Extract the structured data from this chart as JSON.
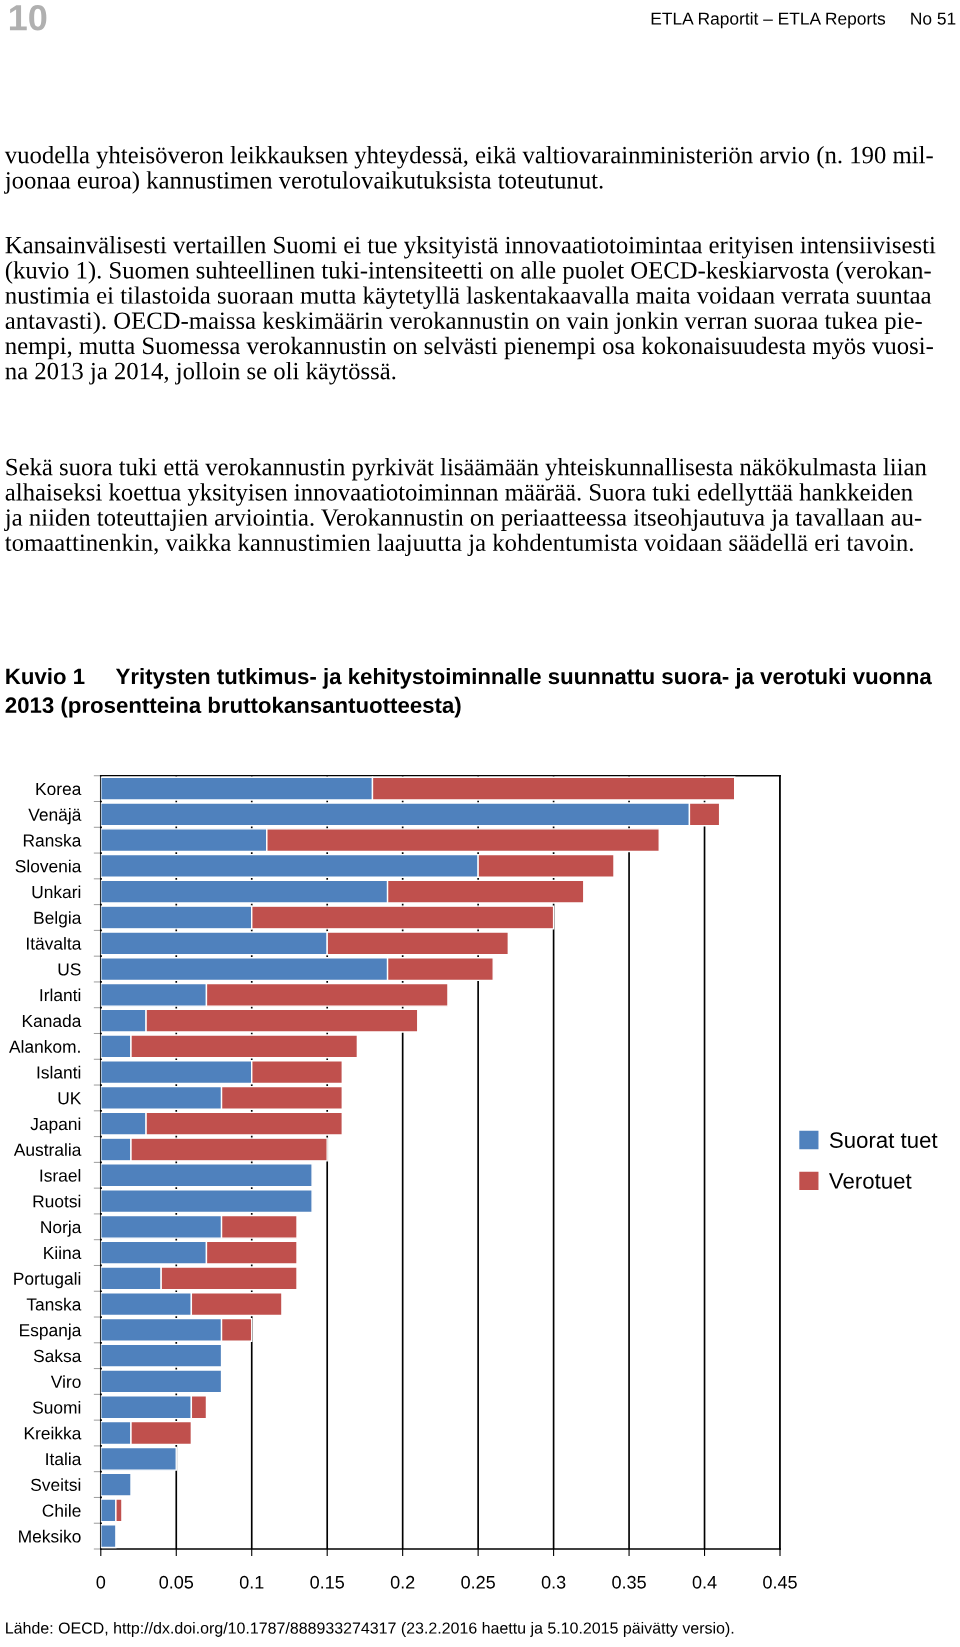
{
  "chart_data": {
    "type": "bar",
    "orientation": "horizontal",
    "stacked": true,
    "title": "Kuvio 1     Yritysten tutkimus- ja kehitystoiminnalle suunnattu suora- ja verotuki vuonna\n2013 (prosentteina bruttokansantuotteesta)",
    "categories": [
      "Korea",
      "Venäjä",
      "Ranska",
      "Slovenia",
      "Unkari",
      "Belgia",
      "Itävalta",
      "US",
      "Irlanti",
      "Kanada",
      "Alankom.",
      "Islanti",
      "UK",
      "Japani",
      "Australia",
      "Israel",
      "Ruotsi",
      "Norja",
      "Kiina",
      "Portugali",
      "Tanska",
      "Espanja",
      "Saksa",
      "Viro",
      "Suomi",
      "Kreikka",
      "Italia",
      "Sveitsi",
      "Chile",
      "Meksiko"
    ],
    "series": [
      {
        "name": "Suorat tuet",
        "color": "#4f81bd",
        "values": [
          0.18,
          0.39,
          0.11,
          0.25,
          0.19,
          0.1,
          0.15,
          0.19,
          0.07,
          0.03,
          0.02,
          0.1,
          0.08,
          0.03,
          0.02,
          0.14,
          0.14,
          0.08,
          0.07,
          0.04,
          0.06,
          0.08,
          0.08,
          0.08,
          0.06,
          0.02,
          0.05,
          0.02,
          0.01,
          0.01
        ]
      },
      {
        "name": "Verotuet",
        "color": "#c0504d",
        "values": [
          0.24,
          0.02,
          0.26,
          0.09,
          0.13,
          0.2,
          0.12,
          0.07,
          0.16,
          0.18,
          0.15,
          0.06,
          0.08,
          0.13,
          0.13,
          null,
          null,
          0.05,
          0.06,
          0.09,
          0.06,
          0.02,
          null,
          null,
          0.01,
          0.04,
          null,
          null,
          0.004,
          null
        ]
      }
    ],
    "xlim": [
      0,
      0.45
    ],
    "xticks": [
      0,
      0.05,
      0.1,
      0.15,
      0.2,
      0.25,
      0.3,
      0.35,
      0.4,
      0.45
    ],
    "grid": "x",
    "legend": "right",
    "annotations": [
      "10",
      "ETLA Raportit – ETLA Reports     No 51",
      "vuodella yhteisöveron leikkauksen yhteydessä, eikä valtiovarainministeriön arvio (n. 190 mil-\njoonaa euroa) kannustimen verotulovaikutuksista toteutunut.",
      "Kansainvälisesti vertaillen Suomi ei tue yksityistä innovaatiotoimintaa erityisen intensiivisesti\n(kuvio 1). Suomen suhteellinen tuki-intensiteetti on alle puolet OECD-keskiarvosta (verokan-\nnustimia ei tilastoida suoraan mutta käytetyllä laskentakaavalla maita voidaan verrata suuntaa\nantavasti). OECD-maissa keskimäärin verokannustin on vain jonkin verran suoraa tukea pie-\nnempi, mutta Suomessa verokannustin on selvästi pienempi osa kokonaisuudesta myös vuosi-\nna 2013 ja 2014, jolloin se oli käytössä.",
      "Sekä suora tuki että verokannustin pyrkivät lisäämään yhteiskunnallisesta näkökulmasta liian\nalhaiseksi koettua yksityisen innovaatiotoiminnan määrää. Suora tuki edellyttää hankkeiden\nja niiden toteuttajien arviointia. Verokannustin on periaatteessa itseohjautuva ja tavallaan au-\ntomaattinenkin, vaikka kannustimien laajuutta ja kohdentumista voidaan säädellä eri tavoin.",
      "Lähde: OECD, http://dx.doi.org/10.1787/888933274317 (23.2.2016 haettu ja 5.10.2015 päivätty versio)."
    ]
  }
}
